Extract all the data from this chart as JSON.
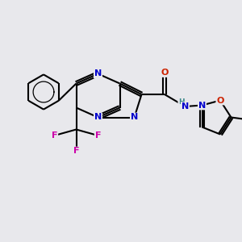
{
  "bg_color": "#e8e8ec",
  "atom_colors": {
    "N": "#0000cc",
    "O": "#cc2200",
    "F": "#cc00aa",
    "C": "#000000",
    "H": "#3a8888"
  },
  "bond_color": "#000000",
  "figsize": [
    3.0,
    3.0
  ],
  "dpi": 100
}
